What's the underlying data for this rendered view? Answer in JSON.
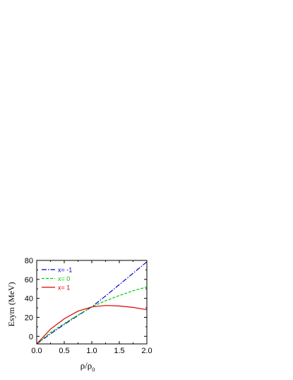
{
  "chart_data": {
    "type": "line",
    "xlabel": "ρ/ρ",
    "xlabel_sub": "0",
    "ylabel": "Esym (MeV)",
    "xlim": [
      0.0,
      2.0
    ],
    "ylim": [
      -8,
      80
    ],
    "xticks": [
      0.0,
      0.5,
      1.0,
      1.5,
      2.0
    ],
    "xtick_labels": [
      "0.0",
      "0.5",
      "1.0",
      "1.5",
      "2.0"
    ],
    "yticks": [
      0,
      20,
      40,
      60,
      80
    ],
    "ytick_labels": [
      "0",
      "20",
      "40",
      "60",
      "80"
    ],
    "grid": false,
    "legend_position": "top-left",
    "series": [
      {
        "name": "x= -1",
        "color": "#0000cc",
        "dash": "dash-dot",
        "x": [
          0.0,
          0.25,
          0.5,
          0.75,
          1.0,
          1.25,
          1.5,
          1.75,
          2.0
        ],
        "y": [
          -8.0,
          2.5,
          12.5,
          22.0,
          31.0,
          42.5,
          54.5,
          66.5,
          78.5
        ]
      },
      {
        "name": "x= 0",
        "color": "#00cc00",
        "dash": "dash",
        "x": [
          0.0,
          0.25,
          0.5,
          0.75,
          1.0,
          1.25,
          1.5,
          1.75,
          2.0
        ],
        "y": [
          -8.0,
          4.0,
          13.5,
          22.5,
          31.0,
          37.5,
          43.0,
          48.0,
          52.0
        ]
      },
      {
        "name": "x= 1",
        "color": "#dd0000",
        "dash": "solid",
        "x": [
          0.0,
          0.25,
          0.5,
          0.75,
          1.0,
          1.25,
          1.5,
          1.75,
          2.0
        ],
        "y": [
          -8.0,
          7.5,
          18.5,
          26.5,
          31.0,
          32.5,
          32.0,
          30.5,
          28.0
        ]
      }
    ]
  }
}
